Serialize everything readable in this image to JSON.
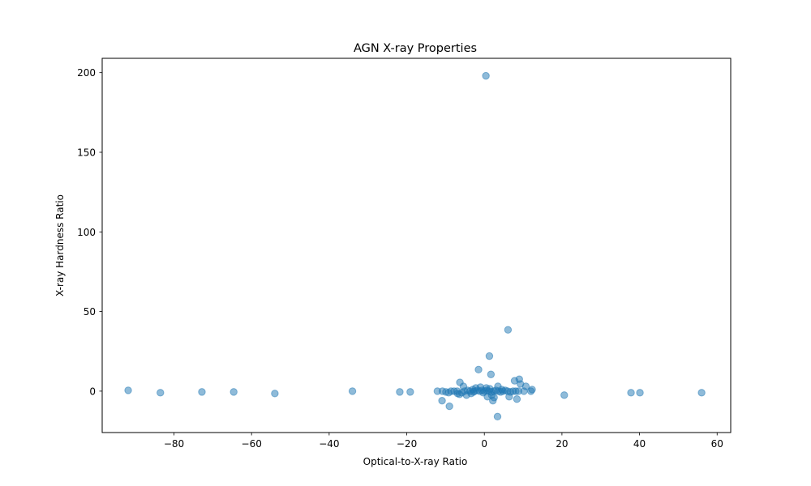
{
  "chart_data": {
    "type": "scatter",
    "title": "AGN X-ray Properties",
    "xlabel": "Optical-to-X-ray Ratio",
    "ylabel": "X-ray Hardness Ratio",
    "xlim": [
      -98.5,
      63.5
    ],
    "ylim": [
      -26,
      209
    ],
    "xticks": [
      -80,
      -60,
      -40,
      -20,
      0,
      20,
      40,
      60
    ],
    "yticks": [
      0,
      50,
      100,
      150,
      200
    ],
    "grid": false,
    "marker_color": "#1f77b4",
    "marker_alpha": 0.5,
    "points": [
      [
        0.4,
        198.0
      ],
      [
        6.1,
        38.5
      ],
      [
        1.3,
        22.0
      ],
      [
        -1.5,
        13.5
      ],
      [
        1.7,
        10.5
      ],
      [
        9.0,
        7.5
      ],
      [
        7.8,
        6.5
      ],
      [
        -6.3,
        5.5
      ],
      [
        10.7,
        3.0
      ],
      [
        9.3,
        4.5
      ],
      [
        -5.4,
        3.0
      ],
      [
        3.5,
        3.0
      ],
      [
        -2.2,
        2.0
      ],
      [
        -1.0,
        2.5
      ],
      [
        0.5,
        2.0
      ],
      [
        -91.8,
        0.5
      ],
      [
        -83.5,
        -1.0
      ],
      [
        -72.8,
        -0.5
      ],
      [
        -64.6,
        -0.5
      ],
      [
        -54.0,
        -1.5
      ],
      [
        -34.0,
        0.0
      ],
      [
        -21.8,
        -0.5
      ],
      [
        -19.1,
        -0.5
      ],
      [
        -12.1,
        0.0
      ],
      [
        -10.8,
        0.0
      ],
      [
        -9.9,
        -0.5
      ],
      [
        -9.2,
        -1.0
      ],
      [
        -8.6,
        0.0
      ],
      [
        -7.8,
        0.0
      ],
      [
        -7.0,
        0.0
      ],
      [
        -6.4,
        -2.0
      ],
      [
        -5.8,
        -1.0
      ],
      [
        -5.1,
        0.0
      ],
      [
        -4.3,
        0.5
      ],
      [
        -3.7,
        0.0
      ],
      [
        -3.0,
        1.0
      ],
      [
        -2.5,
        0.0
      ],
      [
        -1.8,
        0.5
      ],
      [
        -1.2,
        0.0
      ],
      [
        -0.6,
        0.5
      ],
      [
        0.0,
        0.0
      ],
      [
        0.6,
        0.5
      ],
      [
        1.2,
        0.0
      ],
      [
        1.8,
        -0.5
      ],
      [
        2.4,
        0.0
      ],
      [
        3.0,
        0.5
      ],
      [
        3.6,
        0.0
      ],
      [
        4.2,
        -0.5
      ],
      [
        4.8,
        0.0
      ],
      [
        5.4,
        0.5
      ],
      [
        6.0,
        0.0
      ],
      [
        6.7,
        -0.5
      ],
      [
        7.4,
        0.0
      ],
      [
        8.1,
        0.0
      ],
      [
        8.8,
        0.0
      ],
      [
        10.2,
        0.0
      ],
      [
        12.0,
        0.0
      ],
      [
        12.3,
        1.0
      ],
      [
        -4.6,
        -2.5
      ],
      [
        -3.4,
        -1.5
      ],
      [
        0.8,
        -3.5
      ],
      [
        1.9,
        -2.5
      ],
      [
        2.5,
        -4.0
      ],
      [
        2.2,
        -6.0
      ],
      [
        6.4,
        -3.5
      ],
      [
        8.4,
        -5.0
      ],
      [
        -10.9,
        -6.0
      ],
      [
        -9.0,
        -9.5
      ],
      [
        3.4,
        -16.0
      ],
      [
        20.6,
        -2.5
      ],
      [
        37.8,
        -1.0
      ],
      [
        40.1,
        -1.0
      ],
      [
        56.0,
        -1.0
      ],
      [
        -2.8,
        -0.5
      ],
      [
        1.4,
        1.5
      ],
      [
        -0.3,
        -1.0
      ],
      [
        4.5,
        1.0
      ],
      [
        -6.9,
        -1.5
      ]
    ]
  }
}
